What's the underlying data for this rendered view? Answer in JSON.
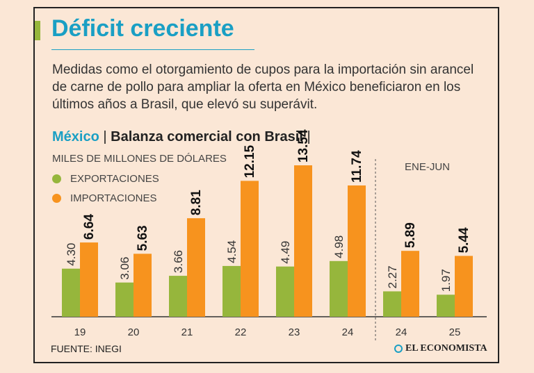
{
  "title": "Déficit creciente",
  "description": "Medidas como el otorgamiento de cupos para la importación sin arancel de carne de pollo para ampliar la oferta en México beneficiaron en los últimos años a Brasil, que elevó su superávit.",
  "subtitle": {
    "country": "México",
    "sep1": " | ",
    "topic": "Balanza comercial con Brasil",
    "sep2": " |"
  },
  "units": "MILES DE MILLONES DE DÓLARES",
  "legend": {
    "exports": "EXPORTACIONES",
    "imports": "IMPORTACIONES"
  },
  "period_note": "ENE-JUN",
  "source": "FUENTE: INEGI",
  "brand": "EL ECONOMISTA",
  "colors": {
    "exports": "#96b63c",
    "imports": "#f7931e",
    "title": "#1a9fc4"
  },
  "chart_data": {
    "type": "bar",
    "title": "Balanza comercial con Brasil",
    "ylabel": "Miles de millones de dólares",
    "categories": [
      "19",
      "20",
      "21",
      "22",
      "23",
      "24",
      "24",
      "25"
    ],
    "series": [
      {
        "name": "EXPORTACIONES",
        "values": [
          4.3,
          3.06,
          3.66,
          4.54,
          4.49,
          4.98,
          2.27,
          1.97
        ]
      },
      {
        "name": "IMPORTACIONES",
        "values": [
          6.64,
          5.63,
          8.81,
          12.15,
          13.54,
          11.74,
          5.89,
          5.44
        ]
      }
    ],
    "labels": {
      "exports": [
        "4.30",
        "3.06",
        "3.66",
        "4.54",
        "4.49",
        "4.98",
        "2.27",
        "1.97"
      ],
      "imports": [
        "6.64",
        "5.63",
        "8.81",
        "12.15",
        "13.54",
        "11.74",
        "5.89",
        "5.44"
      ]
    },
    "ylim": [
      0,
      15
    ],
    "note": "Last two categories: ENE-JUN"
  }
}
